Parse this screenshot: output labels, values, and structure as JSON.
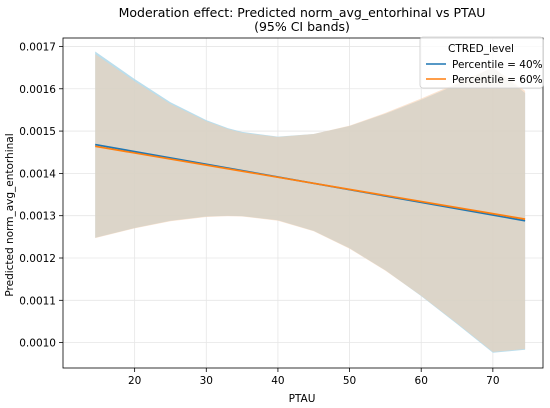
{
  "chart_data": {
    "type": "line",
    "title": "Moderation effect: Predicted norm_avg_entorhinal vs PTAU",
    "subtitle": "(95% CI bands)",
    "xlabel": "PTAU",
    "ylabel": "Predicted norm_avg_entorhinal",
    "xlim": [
      10,
      77
    ],
    "ylim": [
      0.00094,
      0.00172
    ],
    "x_ticks": [
      20,
      30,
      40,
      50,
      60,
      70
    ],
    "y_ticks": [
      0.001,
      0.0011,
      0.0012,
      0.0013,
      0.0014,
      0.0015,
      0.0016,
      0.0017
    ],
    "x_tick_labels": [
      "20",
      "30",
      "40",
      "50",
      "60",
      "70"
    ],
    "y_tick_labels": [
      "0.0010",
      "0.0011",
      "0.0012",
      "0.0013",
      "0.0014",
      "0.0015",
      "0.0016",
      "0.0017"
    ],
    "grid": true,
    "legend": {
      "title": "CTRED_level",
      "placement": "top-right"
    },
    "series": [
      {
        "name": "Percentile = 40%",
        "color": "#1f77b4",
        "band_color": "#aed8ea",
        "x": [
          14.5,
          74.5
        ],
        "y": [
          0.001468,
          0.001288
        ],
        "ci_x": [
          14.5,
          20,
          25,
          30,
          33,
          35,
          40,
          45,
          50,
          55,
          60,
          65,
          70,
          74.5
        ],
        "ci_lower": [
          0.001248,
          0.001271,
          0.001288,
          0.001298,
          0.0013,
          0.001299,
          0.001289,
          0.001264,
          0.001223,
          0.001171,
          0.00111,
          0.001044,
          0.000976,
          0.000983
        ],
        "ci_upper": [
          0.001688,
          0.001623,
          0.001568,
          0.001526,
          0.001507,
          0.001498,
          0.001487,
          0.001493,
          0.001512,
          0.001541,
          0.001574,
          0.00161,
          0.00165,
          0.00159
        ]
      },
      {
        "name": "Percentile = 60%",
        "color": "#ff7f0e",
        "band_color": "#f7ceab",
        "x": [
          14.5,
          74.5
        ],
        "y": [
          0.001464,
          0.001292
        ],
        "ci_x": [
          14.5,
          20,
          25,
          30,
          33,
          35,
          40,
          45,
          50,
          55,
          60,
          65,
          70,
          74.5
        ],
        "ci_lower": [
          0.001247,
          0.00127,
          0.001287,
          0.001297,
          0.001299,
          0.001298,
          0.001288,
          0.001263,
          0.001222,
          0.00117,
          0.001111,
          0.001046,
          0.000978,
          0.000985
        ],
        "ci_upper": [
          0.001682,
          0.001618,
          0.001564,
          0.001523,
          0.001505,
          0.001496,
          0.001486,
          0.001493,
          0.001513,
          0.001543,
          0.001577,
          0.001613,
          0.001651,
          0.001595
        ]
      }
    ]
  }
}
